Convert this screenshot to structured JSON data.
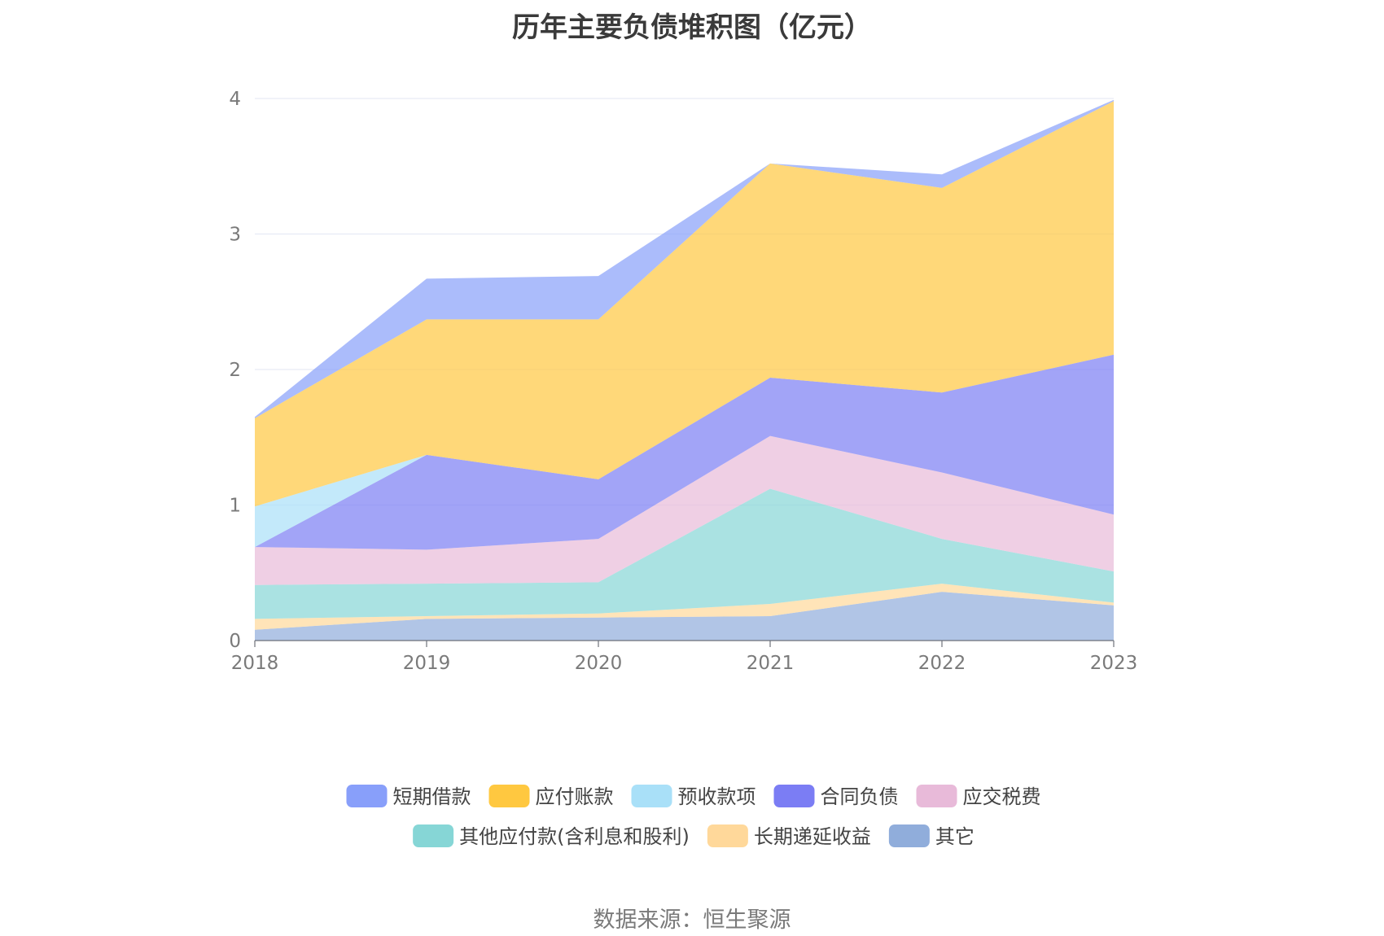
{
  "chart_data": {
    "type": "area",
    "stacked": true,
    "title": "历年主要负债堆积图（亿元）",
    "x": [
      "2018",
      "2019",
      "2020",
      "2021",
      "2022",
      "2023"
    ],
    "ylim": [
      0,
      4
    ],
    "yticks": [
      "0",
      "1",
      "2",
      "3",
      "4"
    ],
    "grid": true,
    "legend_position": "bottom",
    "series": [
      {
        "name": "其它",
        "color": "#90ADDB",
        "values": [
          0.08,
          0.16,
          0.17,
          0.18,
          0.36,
          0.26
        ]
      },
      {
        "name": "长期递延收益",
        "color": "#FFD89A",
        "values": [
          0.08,
          0.02,
          0.03,
          0.09,
          0.06,
          0.02
        ]
      },
      {
        "name": "其他应付款(含利息和股利)",
        "color": "#86D6D6",
        "values": [
          0.25,
          0.24,
          0.23,
          0.85,
          0.33,
          0.23
        ]
      },
      {
        "name": "应交税费",
        "color": "#E8BAD9",
        "values": [
          0.28,
          0.25,
          0.32,
          0.39,
          0.49,
          0.42
        ]
      },
      {
        "name": "合同负债",
        "color": "#7B7DF4",
        "values": [
          0.0,
          0.7,
          0.44,
          0.43,
          0.59,
          1.18
        ]
      },
      {
        "name": "预收款项",
        "color": "#A9E0F8",
        "values": [
          0.3,
          0.0,
          0.0,
          0.0,
          0.0,
          0.0
        ]
      },
      {
        "name": "应付账款",
        "color": "#FFC840",
        "values": [
          0.65,
          1.0,
          1.18,
          1.58,
          1.51,
          1.87
        ]
      },
      {
        "name": "短期借款",
        "color": "#889FFA",
        "values": [
          0.01,
          0.3,
          0.32,
          0.0,
          0.1,
          0.01
        ]
      }
    ],
    "legend_order": [
      "短期借款",
      "应付账款",
      "预收款项",
      "合同负债",
      "应交税费",
      "其他应付款(含利息和股利)",
      "长期递延收益",
      "其它"
    ]
  },
  "source_text": "数据来源：恒生聚源"
}
